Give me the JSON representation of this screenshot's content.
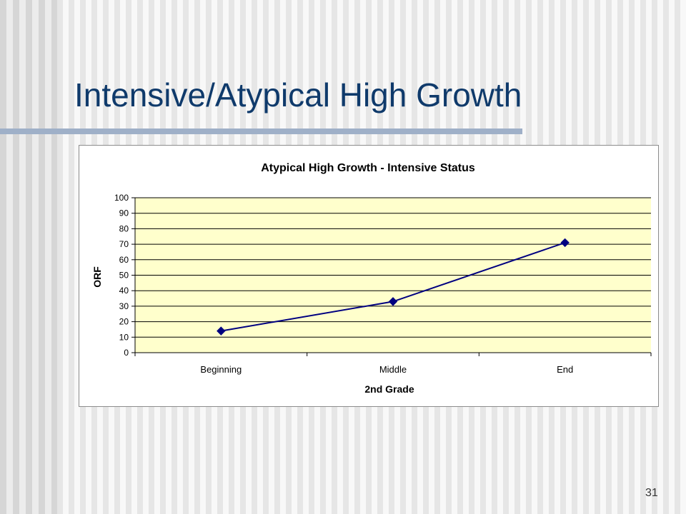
{
  "slide": {
    "title": "Intensive/Atypical High Growth",
    "number": "31"
  },
  "colors": {
    "title": "#0f3a6b",
    "plot_background": "#ffffcc",
    "series_line": "#000080"
  },
  "chart_data": {
    "type": "line",
    "title": "Atypical High Growth - Intensive Status",
    "xlabel": "2nd Grade",
    "ylabel": "ORF",
    "categories": [
      "Beginning",
      "Middle",
      "End"
    ],
    "series": [
      {
        "values": [
          14,
          33,
          71
        ]
      }
    ],
    "ylim": [
      0,
      100
    ],
    "yticks": [
      0,
      10,
      20,
      30,
      40,
      50,
      60,
      70,
      80,
      90,
      100
    ],
    "grid": true,
    "legend": "none",
    "marker": "diamond"
  }
}
